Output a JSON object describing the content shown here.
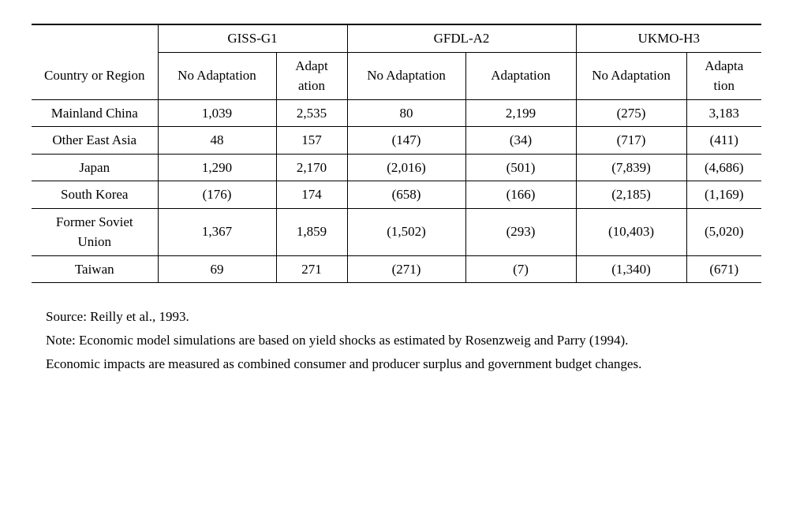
{
  "table": {
    "scenarios": [
      "GISS-G1",
      "GFDL-A2",
      "UKMO-H3"
    ],
    "row_label_header": "Country or Region",
    "sub_headers": {
      "no_adapt": "No Adaptation",
      "adapt_short1": "Adapt ation",
      "adapt": "Adaptation",
      "adapt_short2": "Adapta tion"
    },
    "rows": [
      {
        "label": "Mainland China",
        "vals": [
          "1,039",
          "2,535",
          "80",
          "2,199",
          "(275)",
          "3,183"
        ]
      },
      {
        "label": "Other East Asia",
        "vals": [
          "48",
          "157",
          "(147)",
          "(34)",
          "(717)",
          "(411)"
        ]
      },
      {
        "label": "Japan",
        "vals": [
          "1,290",
          "2,170",
          "(2,016)",
          "(501)",
          "(7,839)",
          "(4,686)"
        ]
      },
      {
        "label": "South Korea",
        "vals": [
          "(176)",
          "174",
          "(658)",
          "(166)",
          "(2,185)",
          "(1,169)"
        ]
      },
      {
        "label": "Former Soviet Union",
        "vals": [
          "1,367",
          "1,859",
          "(1,502)",
          "(293)",
          "(10,403)",
          "(5,020)"
        ]
      },
      {
        "label": "Taiwan",
        "vals": [
          "69",
          "271",
          "(271)",
          "(7)",
          "(1,340)",
          "(671)"
        ]
      }
    ]
  },
  "notes": [
    "Source: Reilly et al., 1993.",
    "Note: Economic model simulations are based on yield shocks as estimated by Rosenzweig and Parry (1994).",
    "Economic impacts are measured as combined consumer and producer surplus and government budget changes."
  ]
}
